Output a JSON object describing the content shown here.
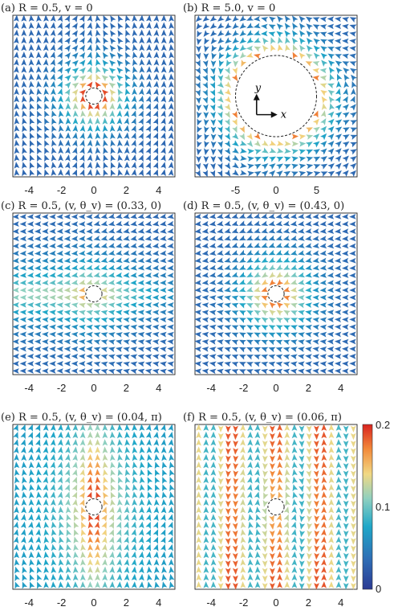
{
  "chart_data": {
    "type": "vector_field",
    "panels": [
      {
        "label": "(a)",
        "title": "R = 0.5, v = 0",
        "R": 0.5,
        "v": 0,
        "theta_v": null,
        "xticks": [
          "-4",
          "-2",
          "0",
          "2",
          "4"
        ],
        "xtick_values": [
          -4,
          -2,
          0,
          2,
          4
        ],
        "xlim": [
          -5,
          5
        ]
      },
      {
        "label": "(b)",
        "title": "R = 5.0, v = 0",
        "R": 5.0,
        "v": 0,
        "theta_v": null,
        "xticks": [
          "-5",
          "0",
          "5"
        ],
        "xtick_values": [
          -5,
          0,
          5
        ],
        "xlim": [
          -10,
          10
        ],
        "axes_labels": {
          "y": "y",
          "x": "x"
        }
      },
      {
        "label": "(c)",
        "title": "R = 0.5, (v, θ_v) = (0.33, 0)",
        "R": 0.5,
        "v": 0.33,
        "theta_v": "0",
        "xticks": [
          "-4",
          "-2",
          "0",
          "2",
          "4"
        ],
        "xtick_values": [
          -4,
          -2,
          0,
          2,
          4
        ],
        "xlim": [
          -5,
          5
        ]
      },
      {
        "label": "(d)",
        "title": "R = 0.5, (v, θ_v) = (0.43, 0)",
        "R": 0.5,
        "v": 0.43,
        "theta_v": "0",
        "xticks": [
          "-4",
          "-2",
          "0",
          "2",
          "4"
        ],
        "xtick_values": [
          -4,
          -2,
          0,
          2,
          4
        ],
        "xlim": [
          -5,
          5
        ]
      },
      {
        "label": "(e)",
        "title": "R = 0.5, (v, θ_v) = (0.04, π)",
        "R": 0.5,
        "v": 0.04,
        "theta_v": "π",
        "xticks": [
          "-4",
          "-2",
          "0",
          "2",
          "4"
        ],
        "xtick_values": [
          -4,
          -2,
          0,
          2,
          4
        ],
        "xlim": [
          -5,
          5
        ]
      },
      {
        "label": "(f)",
        "title": "R = 0.5, (v, θ_v) = (0.06, π)",
        "R": 0.5,
        "v": 0.06,
        "theta_v": "π",
        "xticks": [
          "-4",
          "-2",
          "0",
          "2",
          "4"
        ],
        "xtick_values": [
          -4,
          -2,
          0,
          2,
          4
        ],
        "xlim": [
          -5,
          5
        ]
      }
    ],
    "colorbar": {
      "ticks": [
        "0.2",
        "0.1",
        "0"
      ],
      "tick_values": [
        0.2,
        0.1,
        0
      ],
      "range": [
        0,
        0.2
      ],
      "colormap": [
        "#2b3a93",
        "#2f6db5",
        "#1fa7c8",
        "#8fd0c0",
        "#f1d883",
        "#f28a3a",
        "#d9231f"
      ]
    }
  }
}
